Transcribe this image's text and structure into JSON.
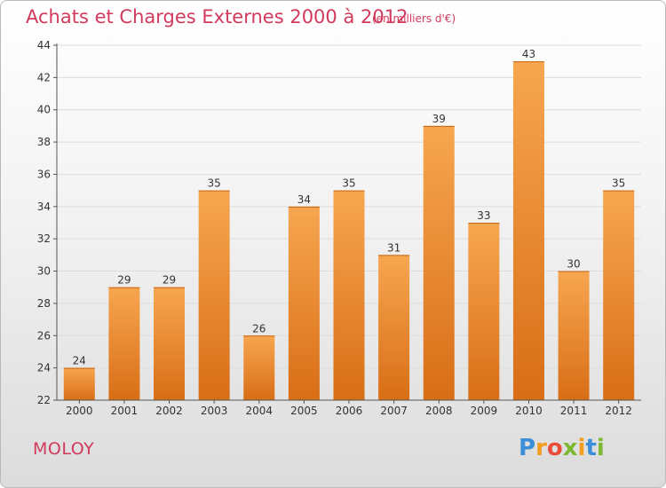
{
  "header": {
    "title": "Achats et Charges Externes 2000 à 2012",
    "subtitle": "(en milliers d'€)"
  },
  "footer": {
    "commune": "MOLOY",
    "logo_letters": [
      "P",
      "r",
      "o",
      "x",
      "i",
      "t",
      "i"
    ],
    "logo_colors": [
      "#3a8fd8",
      "#f39c1e",
      "#e94e3b",
      "#7cb832",
      "#f39c1e",
      "#3a8fd8",
      "#7cb832"
    ]
  },
  "chart_data": {
    "type": "bar",
    "title": "Achats et Charges Externes 2000 à 2012",
    "subtitle": "(en milliers d'€)",
    "categories": [
      "2000",
      "2001",
      "2002",
      "2003",
      "2004",
      "2005",
      "2006",
      "2007",
      "2008",
      "2009",
      "2010",
      "2011",
      "2012"
    ],
    "values": [
      24,
      29,
      29,
      35,
      26,
      34,
      35,
      31,
      39,
      33,
      43,
      30,
      35
    ],
    "ylim": [
      22,
      44
    ],
    "yticks": [
      22,
      24,
      26,
      28,
      30,
      32,
      34,
      36,
      38,
      40,
      42,
      44
    ],
    "grid": true,
    "colors": {
      "bar_top": "#f7a650",
      "bar_bottom": "#d86e16",
      "text": "#333333"
    }
  }
}
